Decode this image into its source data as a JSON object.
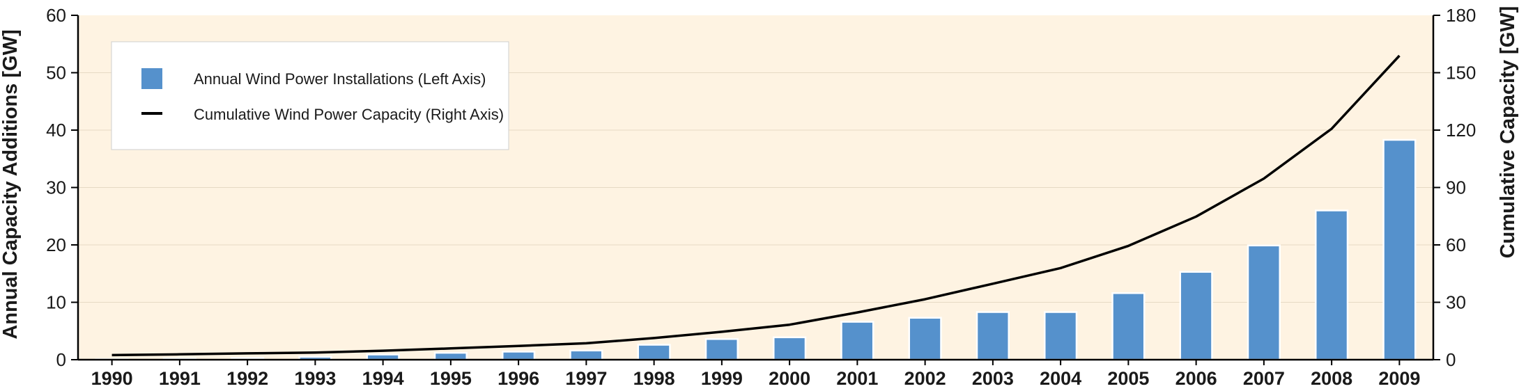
{
  "chart_data": {
    "type": "bar",
    "categories": [
      "1990",
      "1991",
      "1992",
      "1993",
      "1994",
      "1995",
      "1996",
      "1997",
      "1998",
      "1999",
      "2000",
      "2001",
      "2002",
      "2003",
      "2004",
      "2005",
      "2006",
      "2007",
      "2008",
      "2009"
    ],
    "series": [
      {
        "name": "Annual Wind Power Installations (Left Axis)",
        "type": "bar",
        "axis": "left",
        "color": "#5591cc",
        "values": [
          0.1,
          0.2,
          0.3,
          0.5,
          0.9,
          1.2,
          1.4,
          1.6,
          2.6,
          3.6,
          3.9,
          6.6,
          7.3,
          8.3,
          8.3,
          11.6,
          15.3,
          19.9,
          26.0,
          38.3
        ]
      },
      {
        "name": "Cumulative Wind Power Capacity (Right Axis)",
        "type": "line",
        "axis": "right",
        "color": "#000000",
        "values": [
          2.4,
          2.8,
          3.3,
          3.7,
          4.7,
          5.9,
          7.2,
          8.6,
          11.3,
          14.6,
          18.3,
          24.7,
          31.6,
          39.7,
          47.9,
          59.5,
          74.8,
          94.7,
          120.7,
          158.9
        ]
      }
    ],
    "title": "",
    "xlabel": "",
    "ylabel": "Annual Capacity Additions [GW]",
    "ylabel_right": "Cumulative Capacity [GW]",
    "ylim": [
      0,
      60
    ],
    "ylim_right": [
      0,
      180
    ],
    "yticks": [
      "0",
      "10",
      "20",
      "30",
      "40",
      "50",
      "60"
    ],
    "yticks_right": [
      "0",
      "30",
      "60",
      "90",
      "120",
      "150",
      "180"
    ],
    "plot_background": "#fef3e2",
    "grid": true,
    "legend_position": "top-left"
  }
}
